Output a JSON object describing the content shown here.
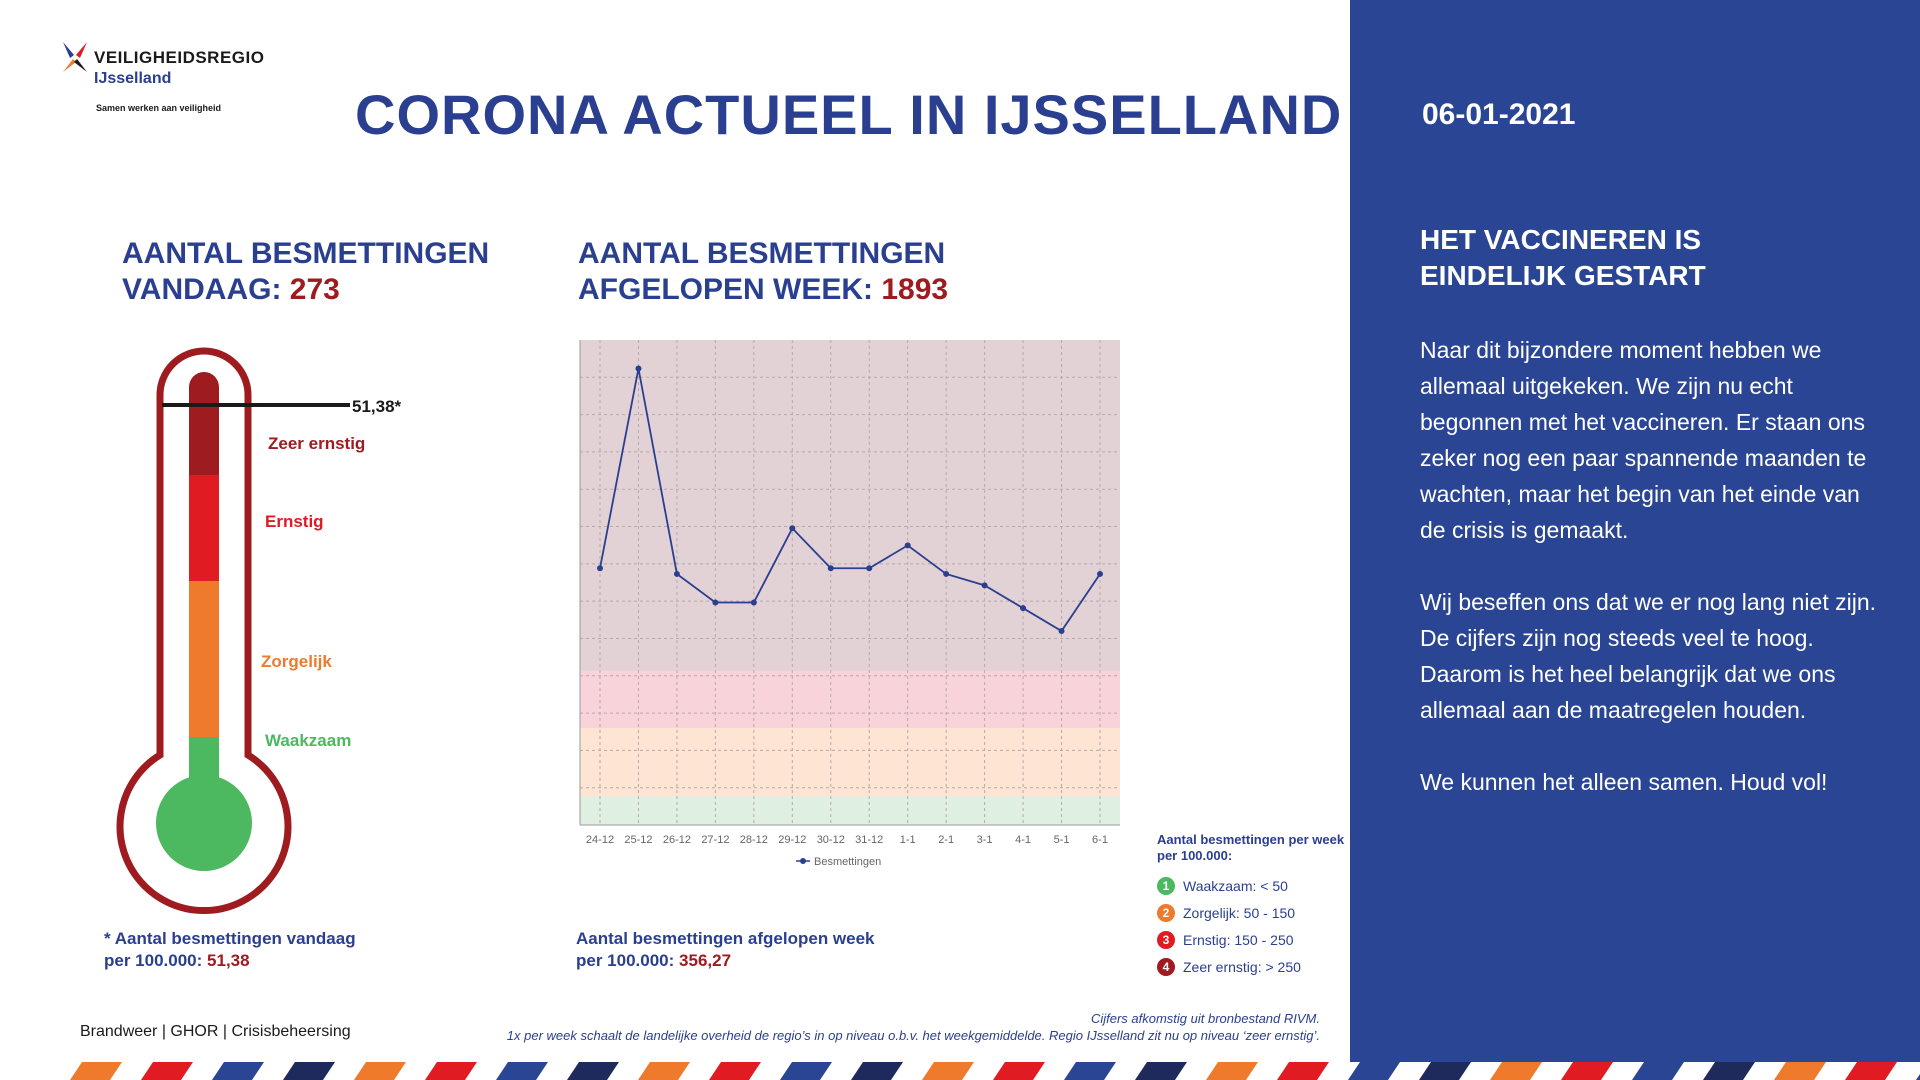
{
  "header": {
    "logo_brand": "VEILIGHEIDSREGIO",
    "logo_region": "IJsselland",
    "logo_tagline": "Samen werken aan veiligheid",
    "title": "CORONA ACTUEEL IN IJSSELLAND"
  },
  "sidebar": {
    "date": "06-01-2021",
    "heading_line1": "HET VACCINEREN IS",
    "heading_line2": "EINDELIJK GESTART",
    "paragraphs": [
      "Naar dit bijzondere moment hebben we allemaal uitgekeken. We zijn nu echt begonnen met het vaccineren. Er staan ons zeker nog een paar spannende maanden te wachten, maar het begin van het einde van de crisis is gemaakt.",
      "Wij beseffen ons dat we er nog lang niet zijn. De cijfers zijn nog steeds veel te hoog. Daarom is het heel belangrijk dat we ons allemaal aan de maatregelen houden.",
      "We kunnen het alleen samen. Houd vol!"
    ]
  },
  "today": {
    "label_line1": "AANTAL BESMETTINGEN",
    "label_line2": "VANDAAG:",
    "value": "273",
    "thermo_marker": "51,38*",
    "levels": [
      "Zeer ernstig",
      "Ernstig",
      "Zorgelijk",
      "Waakzaam"
    ],
    "footnote_line1": "* Aantal besmettingen vandaag",
    "footnote_line2_label": "per 100.000:",
    "footnote_line2_value": "51,38"
  },
  "week": {
    "label_line1": "AANTAL BESMETTINGEN",
    "label_line2": "AFGELOPEN WEEK:",
    "value": "1893",
    "footnote_line1": "Aantal besmettingen afgelopen week",
    "footnote_line2_label": "per 100.000:",
    "footnote_line2_value": "356,27"
  },
  "legend": {
    "title": "Aantal besmettingen per week per 100.000:",
    "items": [
      {
        "num": "1",
        "text": "Waakzaam: < 50",
        "color": "#4cb860"
      },
      {
        "num": "2",
        "text": "Zorgelijk: 50 - 150",
        "color": "#f07a2b"
      },
      {
        "num": "3",
        "text": "Ernstig: 150 - 250",
        "color": "#e01b22"
      },
      {
        "num": "4",
        "text": "Zeer ernstig: > 250",
        "color": "#9e1b20"
      }
    ]
  },
  "footer": {
    "orgs": "Brandweer | GHOR | Crisisbeheersing",
    "source_line1": "Cijfers afkomstig uit bronbestand RIVM.",
    "source_line2": "1x per week schaalt de landelijke overheid de regio’s in op niveau o.b.v. het weekgemiddelde. Regio IJsselland zit nu op niveau ‘zeer ernstig’."
  },
  "colors": {
    "navy": "#2a3f8f",
    "sidebar": "#2a4593",
    "dark_red": "#9e1b20",
    "red": "#e01b22",
    "orange": "#f07a2b",
    "green": "#4cb860"
  },
  "chart_data": {
    "type": "line",
    "categories": [
      "24-12",
      "25-12",
      "26-12",
      "27-12",
      "28-12",
      "29-12",
      "30-12",
      "31-12",
      "1-1",
      "2-1",
      "3-1",
      "4-1",
      "5-1",
      "6-1"
    ],
    "series": [
      {
        "name": "Besmettingen",
        "values": [
          45,
          80,
          44,
          39,
          39,
          52,
          45,
          45,
          49,
          44,
          42,
          38,
          34,
          44
        ]
      }
    ],
    "ylim": [
      0,
      85
    ],
    "bands": [
      {
        "from": 0,
        "to": 5,
        "color": "#dff0e2"
      },
      {
        "from": 5,
        "to": 17,
        "color": "#fde4d3"
      },
      {
        "from": 17,
        "to": 27,
        "color": "#f8d3da"
      },
      {
        "from": 27,
        "to": 85,
        "color": "#e3d2d5"
      }
    ],
    "grid": true,
    "legend_position": "bottom"
  }
}
